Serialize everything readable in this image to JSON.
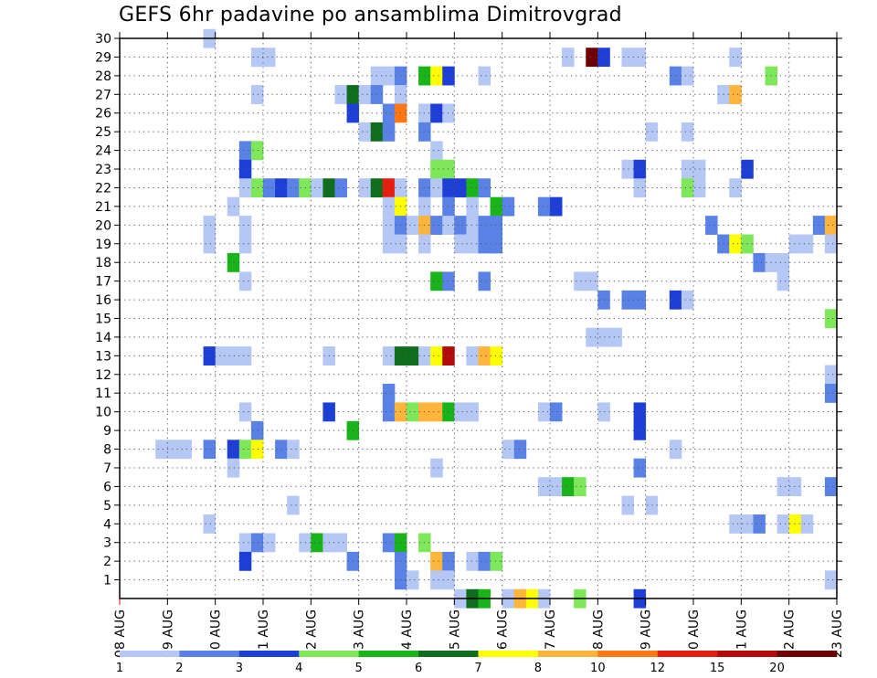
{
  "chart_data": {
    "type": "heatmap",
    "title": "GEFS 6hr padavine po ansamblima Dimitrovgrad",
    "xlabel": "",
    "ylabel": "",
    "x_ticks": [
      "08 AUG",
      "09 AUG",
      "10 AUG",
      "11 AUG",
      "12 AUG",
      "13 AUG",
      "14 AUG",
      "15 AUG",
      "16 AUG",
      "17 AUG",
      "18 AUG",
      "19 AUG",
      "20 AUG",
      "21 AUG",
      "22 AUG",
      "23 AUG"
    ],
    "y_ticks": [
      1,
      2,
      3,
      4,
      5,
      6,
      7,
      8,
      9,
      10,
      11,
      12,
      13,
      14,
      15,
      16,
      17,
      18,
      19,
      20,
      21,
      22,
      23,
      24,
      25,
      26,
      27,
      28,
      29,
      30
    ],
    "x_unit": "6-hour step from 08 AUG 00 UTC",
    "x_range": [
      0,
      60
    ],
    "y_range": [
      0,
      30
    ],
    "grid": true,
    "legend_position": "bottom",
    "legend_boundaries": [
      "1",
      "2",
      "3",
      "4",
      "5",
      "6",
      "7",
      "8",
      "10",
      "12",
      "15",
      "20"
    ],
    "legend_colors": [
      "#b4c7f5",
      "#5a82e6",
      "#1e3fd7",
      "#7ee85a",
      "#19b419",
      "#0f6e1e",
      "#ffff00",
      "#ffb43c",
      "#ff7814",
      "#e61e0f",
      "#b40a0a",
      "#6e0000"
    ],
    "color_scale_note": "cell value = index into legend_colors (0 lightest class)",
    "cells": [
      [
        7,
        30,
        0
      ],
      [
        11,
        29,
        0
      ],
      [
        12,
        29,
        0
      ],
      [
        37,
        29,
        0
      ],
      [
        39,
        29,
        11
      ],
      [
        40,
        29,
        2
      ],
      [
        42,
        29,
        0
      ],
      [
        43,
        29,
        0
      ],
      [
        51,
        29,
        0
      ],
      [
        21,
        28,
        0
      ],
      [
        22,
        28,
        0
      ],
      [
        23,
        28,
        1
      ],
      [
        25,
        28,
        4
      ],
      [
        26,
        28,
        6
      ],
      [
        27,
        28,
        2
      ],
      [
        30,
        28,
        0
      ],
      [
        46,
        28,
        1
      ],
      [
        47,
        28,
        0
      ],
      [
        54,
        28,
        3
      ],
      [
        11,
        27,
        0
      ],
      [
        18,
        27,
        0
      ],
      [
        19,
        27,
        5
      ],
      [
        20,
        27,
        0
      ],
      [
        21,
        27,
        1
      ],
      [
        23,
        27,
        0
      ],
      [
        50,
        27,
        0
      ],
      [
        51,
        27,
        7
      ],
      [
        19,
        26,
        2
      ],
      [
        22,
        26,
        1
      ],
      [
        23,
        26,
        8
      ],
      [
        25,
        26,
        0
      ],
      [
        26,
        26,
        2
      ],
      [
        27,
        26,
        0
      ],
      [
        20,
        25,
        0
      ],
      [
        21,
        25,
        5
      ],
      [
        22,
        25,
        1
      ],
      [
        25,
        25,
        1
      ],
      [
        44,
        25,
        0
      ],
      [
        47,
        25,
        0
      ],
      [
        10,
        24,
        1
      ],
      [
        11,
        24,
        3
      ],
      [
        26,
        24,
        0
      ],
      [
        10,
        23,
        2
      ],
      [
        26,
        23,
        3
      ],
      [
        27,
        23,
        3
      ],
      [
        42,
        23,
        0
      ],
      [
        43,
        23,
        2
      ],
      [
        47,
        23,
        0
      ],
      [
        48,
        23,
        0
      ],
      [
        52,
        23,
        2
      ],
      [
        10,
        22,
        0
      ],
      [
        11,
        22,
        3
      ],
      [
        12,
        22,
        1
      ],
      [
        13,
        22,
        2
      ],
      [
        14,
        22,
        1
      ],
      [
        15,
        22,
        3
      ],
      [
        16,
        22,
        0
      ],
      [
        17,
        22,
        5
      ],
      [
        18,
        22,
        1
      ],
      [
        20,
        22,
        0
      ],
      [
        21,
        22,
        5
      ],
      [
        22,
        22,
        9
      ],
      [
        23,
        22,
        0
      ],
      [
        25,
        22,
        1
      ],
      [
        26,
        22,
        0
      ],
      [
        27,
        22,
        2
      ],
      [
        28,
        22,
        2
      ],
      [
        29,
        22,
        4
      ],
      [
        30,
        22,
        1
      ],
      [
        43,
        22,
        0
      ],
      [
        47,
        22,
        3
      ],
      [
        48,
        22,
        0
      ],
      [
        51,
        22,
        0
      ],
      [
        9,
        21,
        0
      ],
      [
        22,
        21,
        0
      ],
      [
        23,
        21,
        6
      ],
      [
        25,
        21,
        0
      ],
      [
        27,
        21,
        1
      ],
      [
        29,
        21,
        0
      ],
      [
        31,
        21,
        4
      ],
      [
        32,
        21,
        1
      ],
      [
        35,
        21,
        1
      ],
      [
        36,
        21,
        2
      ],
      [
        7,
        20,
        0
      ],
      [
        10,
        20,
        0
      ],
      [
        22,
        20,
        0
      ],
      [
        23,
        20,
        1
      ],
      [
        24,
        20,
        0
      ],
      [
        25,
        20,
        7
      ],
      [
        26,
        20,
        1
      ],
      [
        27,
        20,
        0
      ],
      [
        28,
        20,
        1
      ],
      [
        29,
        20,
        0
      ],
      [
        30,
        20,
        1
      ],
      [
        31,
        20,
        1
      ],
      [
        49,
        20,
        1
      ],
      [
        58,
        20,
        1
      ],
      [
        59,
        20,
        7
      ],
      [
        7,
        19,
        0
      ],
      [
        10,
        19,
        0
      ],
      [
        22,
        19,
        0
      ],
      [
        23,
        19,
        0
      ],
      [
        25,
        19,
        0
      ],
      [
        28,
        19,
        0
      ],
      [
        29,
        19,
        0
      ],
      [
        30,
        19,
        1
      ],
      [
        31,
        19,
        1
      ],
      [
        50,
        19,
        1
      ],
      [
        51,
        19,
        6
      ],
      [
        52,
        19,
        3
      ],
      [
        56,
        19,
        0
      ],
      [
        57,
        19,
        0
      ],
      [
        59,
        19,
        0
      ],
      [
        9,
        18,
        4
      ],
      [
        53,
        18,
        1
      ],
      [
        54,
        18,
        0
      ],
      [
        55,
        18,
        0
      ],
      [
        10,
        17,
        0
      ],
      [
        26,
        17,
        4
      ],
      [
        27,
        17,
        1
      ],
      [
        30,
        17,
        1
      ],
      [
        38,
        17,
        0
      ],
      [
        39,
        17,
        0
      ],
      [
        55,
        17,
        0
      ],
      [
        40,
        16,
        1
      ],
      [
        42,
        16,
        1
      ],
      [
        43,
        16,
        1
      ],
      [
        46,
        16,
        2
      ],
      [
        47,
        16,
        0
      ],
      [
        59,
        15,
        3
      ],
      [
        39,
        14,
        0
      ],
      [
        40,
        14,
        0
      ],
      [
        41,
        14,
        0
      ],
      [
        7,
        13,
        2
      ],
      [
        8,
        13,
        0
      ],
      [
        9,
        13,
        0
      ],
      [
        10,
        13,
        0
      ],
      [
        17,
        13,
        0
      ],
      [
        22,
        13,
        0
      ],
      [
        23,
        13,
        5
      ],
      [
        24,
        13,
        5
      ],
      [
        25,
        13,
        0
      ],
      [
        26,
        13,
        6
      ],
      [
        27,
        13,
        10
      ],
      [
        29,
        13,
        0
      ],
      [
        30,
        13,
        7
      ],
      [
        31,
        13,
        6
      ],
      [
        59,
        12,
        0
      ],
      [
        22,
        11,
        1
      ],
      [
        59,
        11,
        1
      ],
      [
        10,
        10,
        0
      ],
      [
        17,
        10,
        2
      ],
      [
        22,
        10,
        1
      ],
      [
        23,
        10,
        7
      ],
      [
        24,
        10,
        3
      ],
      [
        25,
        10,
        7
      ],
      [
        26,
        10,
        7
      ],
      [
        27,
        10,
        4
      ],
      [
        28,
        10,
        0
      ],
      [
        29,
        10,
        0
      ],
      [
        35,
        10,
        0
      ],
      [
        36,
        10,
        1
      ],
      [
        40,
        10,
        0
      ],
      [
        43,
        10,
        2
      ],
      [
        11,
        9,
        1
      ],
      [
        19,
        9,
        4
      ],
      [
        43,
        9,
        2
      ],
      [
        3,
        8,
        0
      ],
      [
        4,
        8,
        0
      ],
      [
        5,
        8,
        0
      ],
      [
        7,
        8,
        1
      ],
      [
        9,
        8,
        2
      ],
      [
        10,
        8,
        3
      ],
      [
        11,
        8,
        6
      ],
      [
        13,
        8,
        1
      ],
      [
        14,
        8,
        0
      ],
      [
        32,
        8,
        0
      ],
      [
        33,
        8,
        1
      ],
      [
        46,
        8,
        0
      ],
      [
        9,
        7,
        0
      ],
      [
        26,
        7,
        0
      ],
      [
        43,
        7,
        1
      ],
      [
        35,
        6,
        0
      ],
      [
        36,
        6,
        0
      ],
      [
        37,
        6,
        4
      ],
      [
        38,
        6,
        3
      ],
      [
        55,
        6,
        0
      ],
      [
        56,
        6,
        0
      ],
      [
        59,
        6,
        1
      ],
      [
        14,
        5,
        0
      ],
      [
        42,
        5,
        0
      ],
      [
        44,
        5,
        0
      ],
      [
        7,
        4,
        0
      ],
      [
        51,
        4,
        0
      ],
      [
        52,
        4,
        0
      ],
      [
        53,
        4,
        1
      ],
      [
        55,
        4,
        0
      ],
      [
        56,
        4,
        6
      ],
      [
        57,
        4,
        0
      ],
      [
        10,
        3,
        0
      ],
      [
        11,
        3,
        1
      ],
      [
        12,
        3,
        0
      ],
      [
        15,
        3,
        0
      ],
      [
        16,
        3,
        4
      ],
      [
        17,
        3,
        0
      ],
      [
        18,
        3,
        0
      ],
      [
        22,
        3,
        1
      ],
      [
        23,
        3,
        4
      ],
      [
        25,
        3,
        3
      ],
      [
        10,
        2,
        2
      ],
      [
        19,
        2,
        1
      ],
      [
        23,
        2,
        1
      ],
      [
        26,
        2,
        7
      ],
      [
        27,
        2,
        1
      ],
      [
        29,
        2,
        0
      ],
      [
        30,
        2,
        1
      ],
      [
        31,
        2,
        3
      ],
      [
        23,
        1,
        1
      ],
      [
        24,
        1,
        0
      ],
      [
        26,
        1,
        0
      ],
      [
        27,
        1,
        0
      ],
      [
        59,
        1,
        0
      ],
      [
        28,
        0,
        0
      ],
      [
        29,
        0,
        5
      ],
      [
        30,
        0,
        4
      ],
      [
        32,
        0,
        0
      ],
      [
        33,
        0,
        7
      ],
      [
        34,
        0,
        6
      ],
      [
        35,
        0,
        0
      ],
      [
        38,
        0,
        3
      ],
      [
        43,
        0,
        2
      ]
    ]
  }
}
